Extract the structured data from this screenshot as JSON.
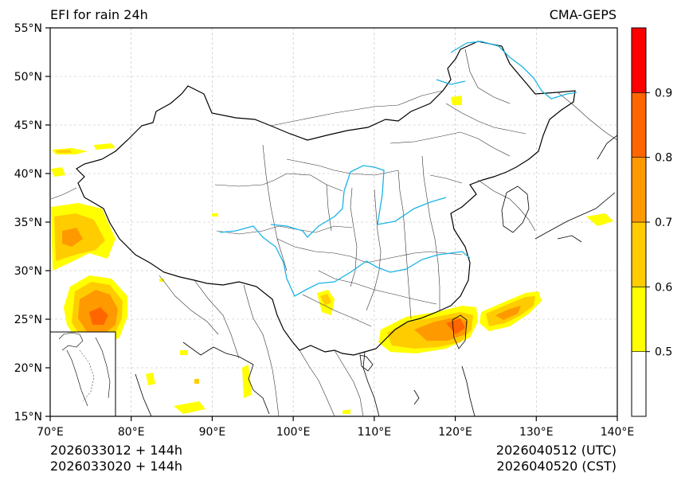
{
  "title_left": "EFI for rain 24h",
  "title_right": "CMA-GEPS",
  "map": {
    "lon_range": [
      70,
      140
    ],
    "lat_range": [
      15,
      55
    ],
    "lat_ticks": [
      "55°N",
      "50°N",
      "45°N",
      "40°N",
      "35°N",
      "30°N",
      "25°N",
      "20°N",
      "15°N"
    ],
    "lon_ticks": [
      "70°E",
      "80°E",
      "90°E",
      "100°E",
      "110°E",
      "120°E",
      "130°E",
      "140°E"
    ],
    "grid": true
  },
  "colorbar": {
    "tick_labels": [
      "0.5",
      "0.6",
      "0.7",
      "0.8",
      "0.9"
    ],
    "colors": [
      "#ffffff",
      "#ffff00",
      "#ffcc00",
      "#ff9900",
      "#ff6600",
      "#ff0000"
    ],
    "levels": [
      0.4,
      0.5,
      0.6,
      0.7,
      0.8,
      0.9,
      1.0
    ]
  },
  "colors": {
    "border": "#000000",
    "river": "#1ab3e6",
    "grid": "#bbbbbb"
  },
  "footer": {
    "init_utc": "2026033012 + 144h",
    "init_cst": "2026033020 + 144h",
    "valid_utc": "2026040512 (UTC)",
    "valid_cst": "2026040520 (CST)"
  }
}
